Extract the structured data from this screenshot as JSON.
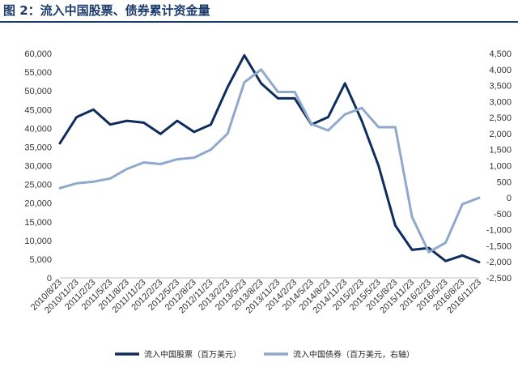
{
  "title": "图 2：流入中国股票、债券累计资金量",
  "chart_data": {
    "type": "line",
    "x": [
      "2010/8/23",
      "2010/11/23",
      "2011/2/23",
      "2011/5/23",
      "2011/8/23",
      "2011/11/23",
      "2012/2/23",
      "2012/5/23",
      "2012/8/23",
      "2012/11/23",
      "2013/2/23",
      "2013/5/23",
      "2013/8/23",
      "2013/11/23",
      "2014/2/23",
      "2014/5/23",
      "2014/8/23",
      "2014/11/23",
      "2015/2/23",
      "2015/5/23",
      "2015/8/23",
      "2015/11/23",
      "2016/2/23",
      "2016/5/23",
      "2016/8/23",
      "2016/11/23"
    ],
    "y_left": {
      "range": [
        0,
        60000
      ],
      "ticks": [
        "0",
        "5,000",
        "10,000",
        "15,000",
        "20,000",
        "25,000",
        "30,000",
        "35,000",
        "40,000",
        "45,000",
        "50,000",
        "55,000",
        "60,000"
      ]
    },
    "y_right": {
      "range": [
        -2500,
        4500
      ],
      "ticks": [
        "-2,500",
        "-2,000",
        "-1,500",
        "-1,000",
        "-500",
        "0",
        "500",
        "1,000",
        "1,500",
        "2,000",
        "2,500",
        "3,000",
        "3,500",
        "4,000",
        "4,500"
      ]
    },
    "series": [
      {
        "name": "流入中国股票（百万美元）",
        "axis": "left",
        "color": "#0f2d5c",
        "values": [
          36000,
          43000,
          45000,
          41000,
          42000,
          41500,
          38500,
          42000,
          39000,
          41000,
          51000,
          59500,
          52000,
          48000,
          48000,
          41000,
          43000,
          52000,
          42000,
          30000,
          14000,
          7500,
          8000,
          4500,
          6000,
          4200
        ]
      },
      {
        "name": "流入中国债券（百万美元，右轴）",
        "axis": "right",
        "color": "#8ea9cc",
        "values": [
          300,
          450,
          500,
          600,
          900,
          1100,
          1050,
          1200,
          1250,
          1500,
          2000,
          3600,
          4000,
          3300,
          3300,
          2300,
          2100,
          2600,
          2800,
          2200,
          2200,
          -600,
          -1700,
          -1400,
          -200,
          0
        ]
      }
    ],
    "legend_position": "bottom",
    "grid": false
  }
}
